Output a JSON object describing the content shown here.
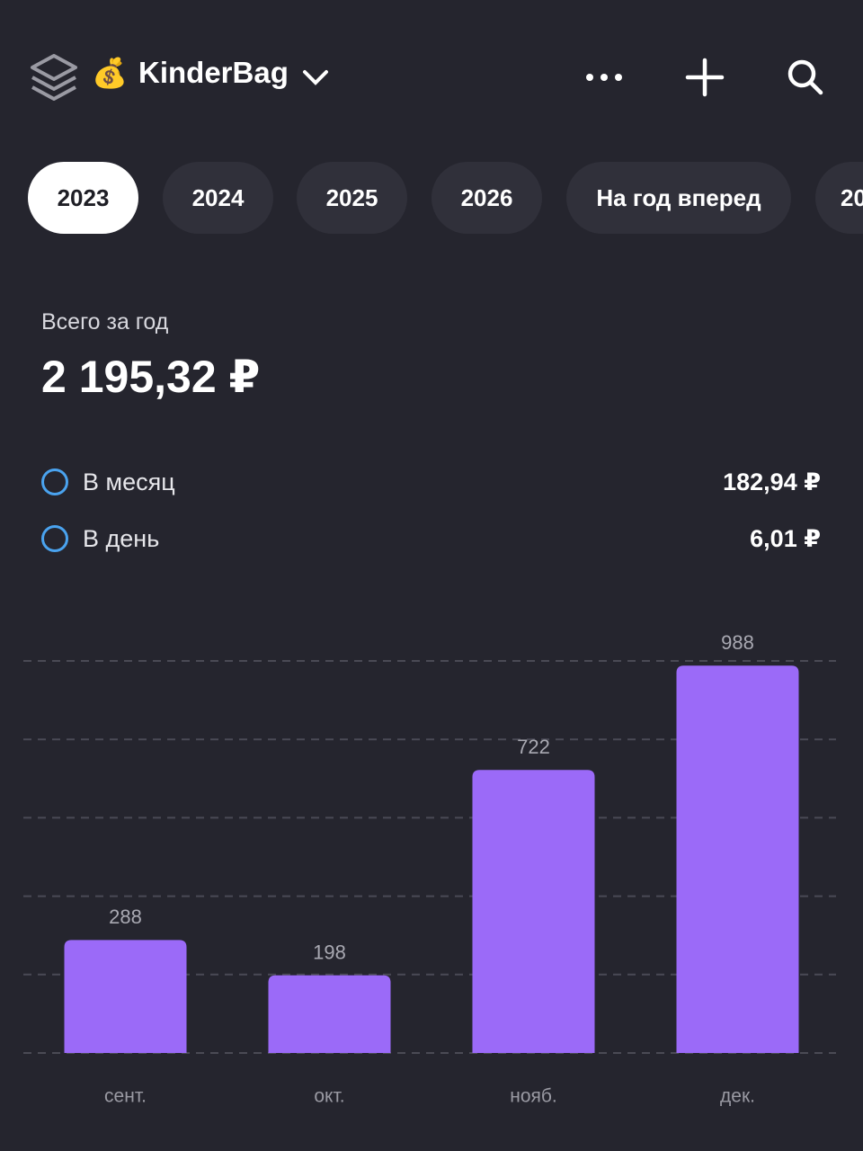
{
  "header": {
    "icon": "💰",
    "title": "KinderBag"
  },
  "tabs": [
    "2023",
    "2024",
    "2025",
    "2026",
    "На год вперед",
    "20"
  ],
  "summary": {
    "label": "Всего за год",
    "total": "2 195,32 ₽",
    "rows": [
      {
        "label": "В месяц",
        "value": "182,94 ₽"
      },
      {
        "label": "В день",
        "value": "6,01 ₽"
      }
    ]
  },
  "chart_data": {
    "type": "bar",
    "categories": [
      "сент.",
      "окт.",
      "нояб.",
      "дек."
    ],
    "values": [
      288,
      198,
      722,
      988
    ],
    "color": "#9b6af8",
    "ylim": [
      0,
      1000
    ],
    "yticks": [
      0,
      200,
      400,
      600,
      800,
      1000
    ],
    "grid": true
  }
}
